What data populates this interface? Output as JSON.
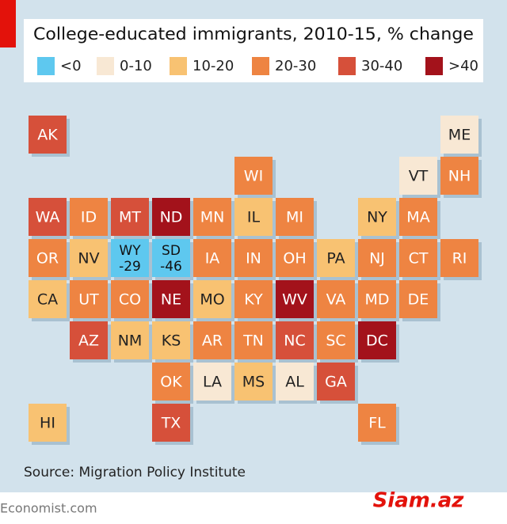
{
  "title": "College-educated immigrants, 2010-15, % change",
  "legend": [
    {
      "label": "<0",
      "color": "#5ec8ef"
    },
    {
      "label": "0-10",
      "color": "#f8e8d4"
    },
    {
      "label": "10-20",
      "color": "#f8c272"
    },
    {
      "label": "20-30",
      "color": "#ee8442"
    },
    {
      "label": "30-40",
      "color": "#d6503a"
    },
    {
      "label": ">40",
      "color": "#a3121b"
    }
  ],
  "tiles": [
    {
      "label": "AK",
      "color": "#d6503a"
    },
    {
      "label": "ME",
      "color": "#f8e8d4"
    },
    {
      "label": "WI",
      "color": "#ee8442"
    },
    {
      "label": "VT",
      "color": "#f8e8d4"
    },
    {
      "label": "NH",
      "color": "#ee8442"
    },
    {
      "label": "WA",
      "color": "#d6503a"
    },
    {
      "label": "ID",
      "color": "#ee8442"
    },
    {
      "label": "MT",
      "color": "#d6503a"
    },
    {
      "label": "ND",
      "color": "#a3121b"
    },
    {
      "label": "MN",
      "color": "#ee8442"
    },
    {
      "label": "IL",
      "color": "#f8c272"
    },
    {
      "label": "MI",
      "color": "#ee8442"
    },
    {
      "label": "NY",
      "color": "#f8c272"
    },
    {
      "label": "MA",
      "color": "#ee8442"
    },
    {
      "label": "OR",
      "color": "#ee8442"
    },
    {
      "label": "NV",
      "color": "#f8c272"
    },
    {
      "label": "WY",
      "color": "#5ec8ef",
      "value": -29
    },
    {
      "label": "SD",
      "color": "#5ec8ef",
      "value": -46
    },
    {
      "label": "IA",
      "color": "#ee8442"
    },
    {
      "label": "IN",
      "color": "#ee8442"
    },
    {
      "label": "OH",
      "color": "#ee8442"
    },
    {
      "label": "PA",
      "color": "#f8c272"
    },
    {
      "label": "NJ",
      "color": "#ee8442"
    },
    {
      "label": "CT",
      "color": "#ee8442"
    },
    {
      "label": "RI",
      "color": "#ee8442"
    },
    {
      "label": "CA",
      "color": "#f8c272"
    },
    {
      "label": "UT",
      "color": "#ee8442"
    },
    {
      "label": "CO",
      "color": "#ee8442"
    },
    {
      "label": "NE",
      "color": "#a3121b"
    },
    {
      "label": "MO",
      "color": "#f8c272"
    },
    {
      "label": "KY",
      "color": "#ee8442"
    },
    {
      "label": "WV",
      "color": "#a3121b"
    },
    {
      "label": "VA",
      "color": "#ee8442"
    },
    {
      "label": "MD",
      "color": "#ee8442"
    },
    {
      "label": "DE",
      "color": "#ee8442"
    },
    {
      "label": "AZ",
      "color": "#d6503a"
    },
    {
      "label": "NM",
      "color": "#f8c272"
    },
    {
      "label": "KS",
      "color": "#f8c272"
    },
    {
      "label": "AR",
      "color": "#ee8442"
    },
    {
      "label": "TN",
      "color": "#ee8442"
    },
    {
      "label": "NC",
      "color": "#d6503a"
    },
    {
      "label": "SC",
      "color": "#ee8442"
    },
    {
      "label": "DC",
      "color": "#a3121b"
    },
    {
      "label": "OK",
      "color": "#ee8442"
    },
    {
      "label": "LA",
      "color": "#f8e8d4"
    },
    {
      "label": "MS",
      "color": "#f8c272"
    },
    {
      "label": "AL",
      "color": "#f8e8d4"
    },
    {
      "label": "GA",
      "color": "#d6503a"
    },
    {
      "label": "HI",
      "color": "#f8c272"
    },
    {
      "label": "TX",
      "color": "#d6503a"
    },
    {
      "label": "FL",
      "color": "#ee8442"
    }
  ],
  "source": "Source: Migration Policy Institute",
  "footer": "Economist.com",
  "watermark": "Siam.az"
}
